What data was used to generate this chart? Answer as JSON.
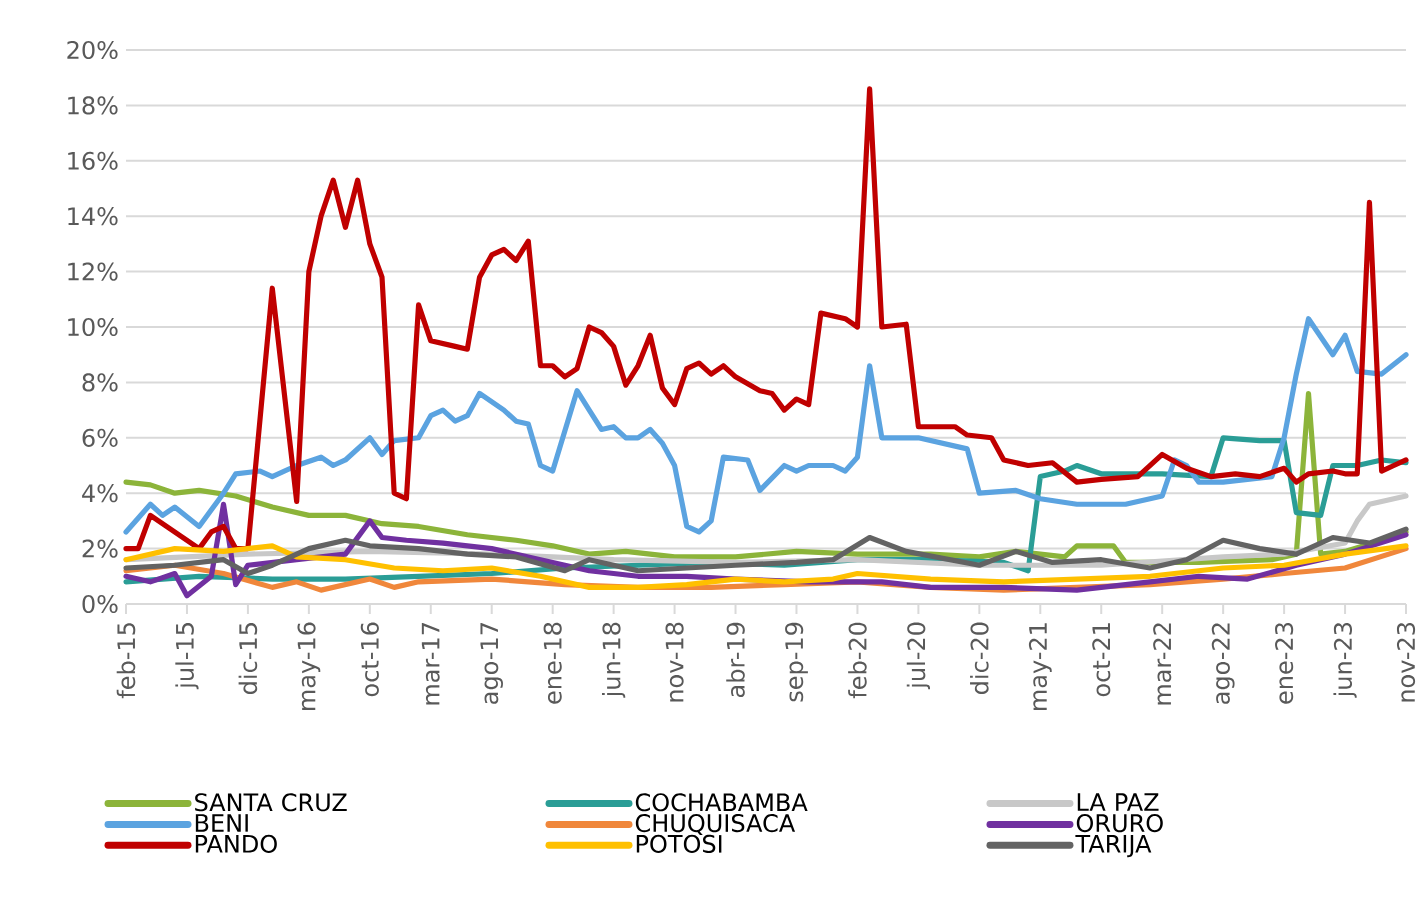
{
  "chart_data": {
    "type": "line",
    "xlim": [
      "2015-02",
      "2023-11"
    ],
    "xticks": [
      {
        "value": "2015-02",
        "label": "feb-15"
      },
      {
        "value": "2015-07",
        "label": "jul-15"
      },
      {
        "value": "2015-12",
        "label": "dic-15"
      },
      {
        "value": "2016-05",
        "label": "may-16"
      },
      {
        "value": "2016-10",
        "label": "oct-16"
      },
      {
        "value": "2017-03",
        "label": "mar-17"
      },
      {
        "value": "2017-08",
        "label": "ago-17"
      },
      {
        "value": "2018-01",
        "label": "ene-18"
      },
      {
        "value": "2018-06",
        "label": "jun-18"
      },
      {
        "value": "2018-11",
        "label": "nov-18"
      },
      {
        "value": "2019-04",
        "label": "abr-19"
      },
      {
        "value": "2019-09",
        "label": "sep-19"
      },
      {
        "value": "2020-02",
        "label": "feb-20"
      },
      {
        "value": "2020-07",
        "label": "jul-20"
      },
      {
        "value": "2020-12",
        "label": "dic-20"
      },
      {
        "value": "2021-05",
        "label": "may-21"
      },
      {
        "value": "2021-10",
        "label": "oct-21"
      },
      {
        "value": "2022-03",
        "label": "mar-22"
      },
      {
        "value": "2022-08",
        "label": "ago-22"
      },
      {
        "value": "2023-01",
        "label": "ene-23"
      },
      {
        "value": "2023-06",
        "label": "jun-23"
      },
      {
        "value": "2023-11",
        "label": "nov-23"
      }
    ],
    "ylim": [
      0,
      20
    ],
    "yticks": [
      {
        "value": 0,
        "label": "0%"
      },
      {
        "value": 2,
        "label": "2%"
      },
      {
        "value": 4,
        "label": "4%"
      },
      {
        "value": 6,
        "label": "6%"
      },
      {
        "value": 8,
        "label": "8%"
      },
      {
        "value": 10,
        "label": "10%"
      },
      {
        "value": 12,
        "label": "12%"
      },
      {
        "value": 14,
        "label": "14%"
      },
      {
        "value": 16,
        "label": "16%"
      },
      {
        "value": 18,
        "label": "18%"
      },
      {
        "value": 20,
        "label": "20%"
      }
    ],
    "grid": "y",
    "legend": "bottom",
    "marker": "none",
    "line_style": "solid",
    "series": [
      {
        "name": "SANTA CRUZ",
        "color": "#8cb43a",
        "x": [
          "2015-02",
          "2015-04",
          "2015-06",
          "2015-08",
          "2015-11",
          "2016-02",
          "2016-05",
          "2016-08",
          "2016-11",
          "2017-02",
          "2017-06",
          "2017-10",
          "2018-01",
          "2018-04",
          "2018-07",
          "2018-11",
          "2019-04",
          "2019-09",
          "2020-02",
          "2020-08",
          "2020-12",
          "2021-03",
          "2021-05",
          "2021-07",
          "2021-08",
          "2021-11",
          "2021-12",
          "2022-06",
          "2022-12",
          "2023-02",
          "2023-03",
          "2023-04",
          "2023-06",
          "2023-09",
          "2023-11"
        ],
        "values": [
          4.4,
          4.3,
          4.0,
          4.1,
          3.9,
          3.5,
          3.2,
          3.2,
          2.9,
          2.8,
          2.5,
          2.3,
          2.1,
          1.8,
          1.9,
          1.7,
          1.7,
          1.9,
          1.8,
          1.8,
          1.7,
          1.9,
          1.8,
          1.7,
          2.1,
          2.1,
          1.5,
          1.5,
          1.6,
          1.8,
          7.6,
          1.8,
          1.9,
          2.3,
          2.6
        ]
      },
      {
        "name": "COCHABAMBA",
        "color": "#2a9d96",
        "x": [
          "2015-02",
          "2015-08",
          "2016-02",
          "2016-08",
          "2017-02",
          "2017-08",
          "2018-02",
          "2018-08",
          "2019-02",
          "2019-08",
          "2020-02",
          "2020-08",
          "2021-02",
          "2021-04",
          "2021-05",
          "2021-07",
          "2021-08",
          "2021-10",
          "2022-03",
          "2022-07",
          "2022-08",
          "2022-11",
          "2023-01",
          "2023-02",
          "2023-04",
          "2023-05",
          "2023-07",
          "2023-09",
          "2023-11"
        ],
        "values": [
          0.8,
          1.0,
          0.9,
          0.9,
          1.0,
          1.1,
          1.3,
          1.4,
          1.5,
          1.4,
          1.6,
          1.6,
          1.5,
          1.2,
          4.6,
          4.8,
          5.0,
          4.7,
          4.7,
          4.6,
          6.0,
          5.9,
          5.9,
          3.3,
          3.2,
          5.0,
          5.0,
          5.2,
          5.1
        ]
      },
      {
        "name": "LA PAZ",
        "color": "#c8c8c8",
        "x": [
          "2015-02",
          "2015-12",
          "2016-10",
          "2017-08",
          "2018-06",
          "2019-04",
          "2020-02",
          "2020-12",
          "2021-10",
          "2022-08",
          "2023-01",
          "2023-06",
          "2023-07",
          "2023-08",
          "2023-10",
          "2023-11"
        ],
        "values": [
          1.6,
          1.8,
          1.9,
          1.8,
          1.6,
          1.5,
          1.6,
          1.4,
          1.4,
          1.7,
          1.8,
          2.2,
          3.0,
          3.6,
          3.8,
          3.9
        ]
      },
      {
        "name": "BENI",
        "color": "#5ba3e0",
        "x": [
          "2015-02",
          "2015-04",
          "2015-05",
          "2015-06",
          "2015-08",
          "2015-10",
          "2015-11",
          "2016-01",
          "2016-02",
          "2016-04",
          "2016-06",
          "2016-07",
          "2016-08",
          "2016-10",
          "2016-11",
          "2016-12",
          "2017-02",
          "2017-03",
          "2017-04",
          "2017-05",
          "2017-06",
          "2017-07",
          "2017-09",
          "2017-10",
          "2017-11",
          "2017-12",
          "2018-01",
          "2018-03",
          "2018-04",
          "2018-05",
          "2018-06",
          "2018-07",
          "2018-08",
          "2018-09",
          "2018-10",
          "2018-11",
          "2018-12",
          "2019-01",
          "2019-02",
          "2019-03",
          "2019-05",
          "2019-06",
          "2019-08",
          "2019-09",
          "2019-10",
          "2019-12",
          "2020-01",
          "2020-02",
          "2020-03",
          "2020-04",
          "2020-07",
          "2020-11",
          "2020-12",
          "2021-03",
          "2021-05",
          "2021-08",
          "2021-12",
          "2022-03",
          "2022-04",
          "2022-05",
          "2022-06",
          "2022-08",
          "2022-10",
          "2022-12",
          "2023-01",
          "2023-02",
          "2023-03",
          "2023-05",
          "2023-06",
          "2023-07",
          "2023-09",
          "2023-11"
        ],
        "values": [
          2.6,
          3.6,
          3.2,
          3.5,
          2.8,
          4.0,
          4.7,
          4.8,
          4.6,
          5.0,
          5.3,
          5.0,
          5.2,
          6.0,
          5.4,
          5.9,
          6.0,
          6.8,
          7.0,
          6.6,
          6.8,
          7.6,
          7.0,
          6.6,
          6.5,
          5.0,
          4.8,
          7.7,
          7.0,
          6.3,
          6.4,
          6.0,
          6.0,
          6.3,
          5.8,
          5.0,
          2.8,
          2.6,
          3.0,
          5.3,
          5.2,
          4.1,
          5.0,
          4.8,
          5.0,
          5.0,
          4.8,
          5.3,
          8.6,
          6.0,
          6.0,
          5.6,
          4.0,
          4.1,
          3.8,
          3.6,
          3.6,
          3.9,
          5.2,
          5.0,
          4.4,
          4.4,
          4.5,
          4.6,
          6.0,
          8.3,
          10.3,
          9.0,
          9.7,
          8.4,
          8.3,
          9.0
        ]
      },
      {
        "name": "CHUQUISACA",
        "color": "#f0873b",
        "x": [
          "2015-02",
          "2015-06",
          "2015-10",
          "2016-02",
          "2016-04",
          "2016-06",
          "2016-08",
          "2016-10",
          "2016-12",
          "2017-02",
          "2017-08",
          "2018-02",
          "2018-08",
          "2019-02",
          "2019-08",
          "2020-02",
          "2020-08",
          "2021-02",
          "2021-08",
          "2022-02",
          "2022-08",
          "2023-01",
          "2023-06",
          "2023-11"
        ],
        "values": [
          1.2,
          1.4,
          1.1,
          0.6,
          0.8,
          0.5,
          0.7,
          0.9,
          0.6,
          0.8,
          0.9,
          0.7,
          0.6,
          0.6,
          0.7,
          0.8,
          0.6,
          0.5,
          0.6,
          0.7,
          0.9,
          1.1,
          1.3,
          2.0
        ]
      },
      {
        "name": "ORURO",
        "color": "#7030a0",
        "x": [
          "2015-02",
          "2015-04",
          "2015-06",
          "2015-07",
          "2015-09",
          "2015-10",
          "2015-11",
          "2015-12",
          "2016-04",
          "2016-08",
          "2016-10",
          "2016-11",
          "2017-01",
          "2017-04",
          "2017-08",
          "2017-12",
          "2018-04",
          "2018-08",
          "2018-12",
          "2019-04",
          "2019-10",
          "2020-04",
          "2020-08",
          "2021-02",
          "2021-08",
          "2022-02",
          "2022-06",
          "2022-10",
          "2023-02",
          "2023-06",
          "2023-11"
        ],
        "values": [
          1.0,
          0.8,
          1.1,
          0.3,
          1.0,
          3.6,
          0.7,
          1.4,
          1.6,
          1.8,
          3.0,
          2.4,
          2.3,
          2.2,
          2.0,
          1.6,
          1.2,
          1.0,
          1.0,
          0.9,
          0.8,
          0.8,
          0.6,
          0.6,
          0.5,
          0.8,
          1.0,
          0.9,
          1.4,
          1.8,
          2.5
        ]
      },
      {
        "name": "PANDO",
        "color": "#c00000",
        "x": [
          "2015-02",
          "2015-03",
          "2015-04",
          "2015-08",
          "2015-09",
          "2015-10",
          "2015-11",
          "2015-12",
          "2016-02",
          "2016-04",
          "2016-05",
          "2016-06",
          "2016-07",
          "2016-08",
          "2016-09",
          "2016-10",
          "2016-11",
          "2016-12",
          "2017-01",
          "2017-02",
          "2017-03",
          "2017-05",
          "2017-06",
          "2017-07",
          "2017-08",
          "2017-09",
          "2017-10",
          "2017-11",
          "2017-12",
          "2018-01",
          "2018-02",
          "2018-03",
          "2018-04",
          "2018-05",
          "2018-06",
          "2018-07",
          "2018-08",
          "2018-09",
          "2018-10",
          "2018-11",
          "2018-12",
          "2019-01",
          "2019-02",
          "2019-03",
          "2019-04",
          "2019-06",
          "2019-07",
          "2019-08",
          "2019-09",
          "2019-10",
          "2019-11",
          "2020-01",
          "2020-02",
          "2020-03",
          "2020-04",
          "2020-06",
          "2020-07",
          "2020-10",
          "2020-11",
          "2021-01",
          "2021-02",
          "2021-04",
          "2021-06",
          "2021-08",
          "2021-10",
          "2022-01",
          "2022-03",
          "2022-05",
          "2022-07",
          "2022-09",
          "2022-11",
          "2023-01",
          "2023-02",
          "2023-03",
          "2023-05",
          "2023-06",
          "2023-07",
          "2023-08",
          "2023-09",
          "2023-10",
          "2023-11"
        ],
        "values": [
          2.0,
          2.0,
          3.2,
          2.0,
          2.6,
          2.8,
          2.0,
          2.0,
          11.4,
          3.7,
          12.0,
          14.0,
          15.3,
          13.6,
          15.3,
          13.0,
          11.8,
          4.0,
          3.8,
          10.8,
          9.5,
          9.3,
          9.2,
          11.8,
          12.6,
          12.8,
          12.4,
          13.1,
          8.6,
          8.6,
          8.2,
          8.5,
          10.0,
          9.8,
          9.3,
          7.9,
          8.6,
          9.7,
          7.8,
          7.2,
          8.5,
          8.7,
          8.3,
          8.6,
          8.2,
          7.7,
          7.6,
          7.0,
          7.4,
          7.2,
          10.5,
          10.3,
          10.0,
          18.6,
          10.0,
          10.1,
          6.4,
          6.4,
          6.1,
          6.0,
          5.2,
          5.0,
          5.1,
          4.4,
          4.5,
          4.6,
          5.4,
          4.9,
          4.6,
          4.7,
          4.6,
          4.9,
          4.4,
          4.7,
          4.8,
          4.7,
          4.7,
          14.5,
          4.8,
          5.0,
          5.2
        ]
      },
      {
        "name": "POTOSI",
        "color": "#ffc000",
        "x": [
          "2015-02",
          "2015-06",
          "2015-10",
          "2016-02",
          "2016-04",
          "2016-08",
          "2016-12",
          "2017-04",
          "2017-08",
          "2017-12",
          "2018-04",
          "2018-08",
          "2018-12",
          "2019-04",
          "2019-08",
          "2019-12",
          "2020-02",
          "2020-08",
          "2021-02",
          "2021-08",
          "2022-02",
          "2022-08",
          "2023-01",
          "2023-06",
          "2023-11"
        ],
        "values": [
          1.6,
          2.0,
          1.9,
          2.1,
          1.7,
          1.6,
          1.3,
          1.2,
          1.3,
          1.0,
          0.6,
          0.6,
          0.7,
          0.9,
          0.8,
          0.9,
          1.1,
          0.9,
          0.8,
          0.9,
          1.0,
          1.3,
          1.4,
          1.8,
          2.1
        ]
      },
      {
        "name": "TARIJA",
        "color": "#636363",
        "x": [
          "2015-02",
          "2015-06",
          "2015-10",
          "2015-12",
          "2016-02",
          "2016-05",
          "2016-08",
          "2016-10",
          "2017-02",
          "2017-06",
          "2017-10",
          "2018-02",
          "2018-04",
          "2018-08",
          "2018-12",
          "2019-04",
          "2019-09",
          "2019-12",
          "2020-03",
          "2020-06",
          "2020-12",
          "2021-03",
          "2021-06",
          "2021-10",
          "2022-02",
          "2022-05",
          "2022-08",
          "2022-11",
          "2023-02",
          "2023-05",
          "2023-08",
          "2023-11"
        ],
        "values": [
          1.3,
          1.4,
          1.6,
          1.1,
          1.4,
          2.0,
          2.3,
          2.1,
          2.0,
          1.8,
          1.7,
          1.2,
          1.6,
          1.2,
          1.3,
          1.4,
          1.5,
          1.6,
          2.4,
          1.9,
          1.4,
          1.9,
          1.5,
          1.6,
          1.3,
          1.6,
          2.3,
          2.0,
          1.8,
          2.4,
          2.2,
          2.7
        ]
      }
    ]
  }
}
